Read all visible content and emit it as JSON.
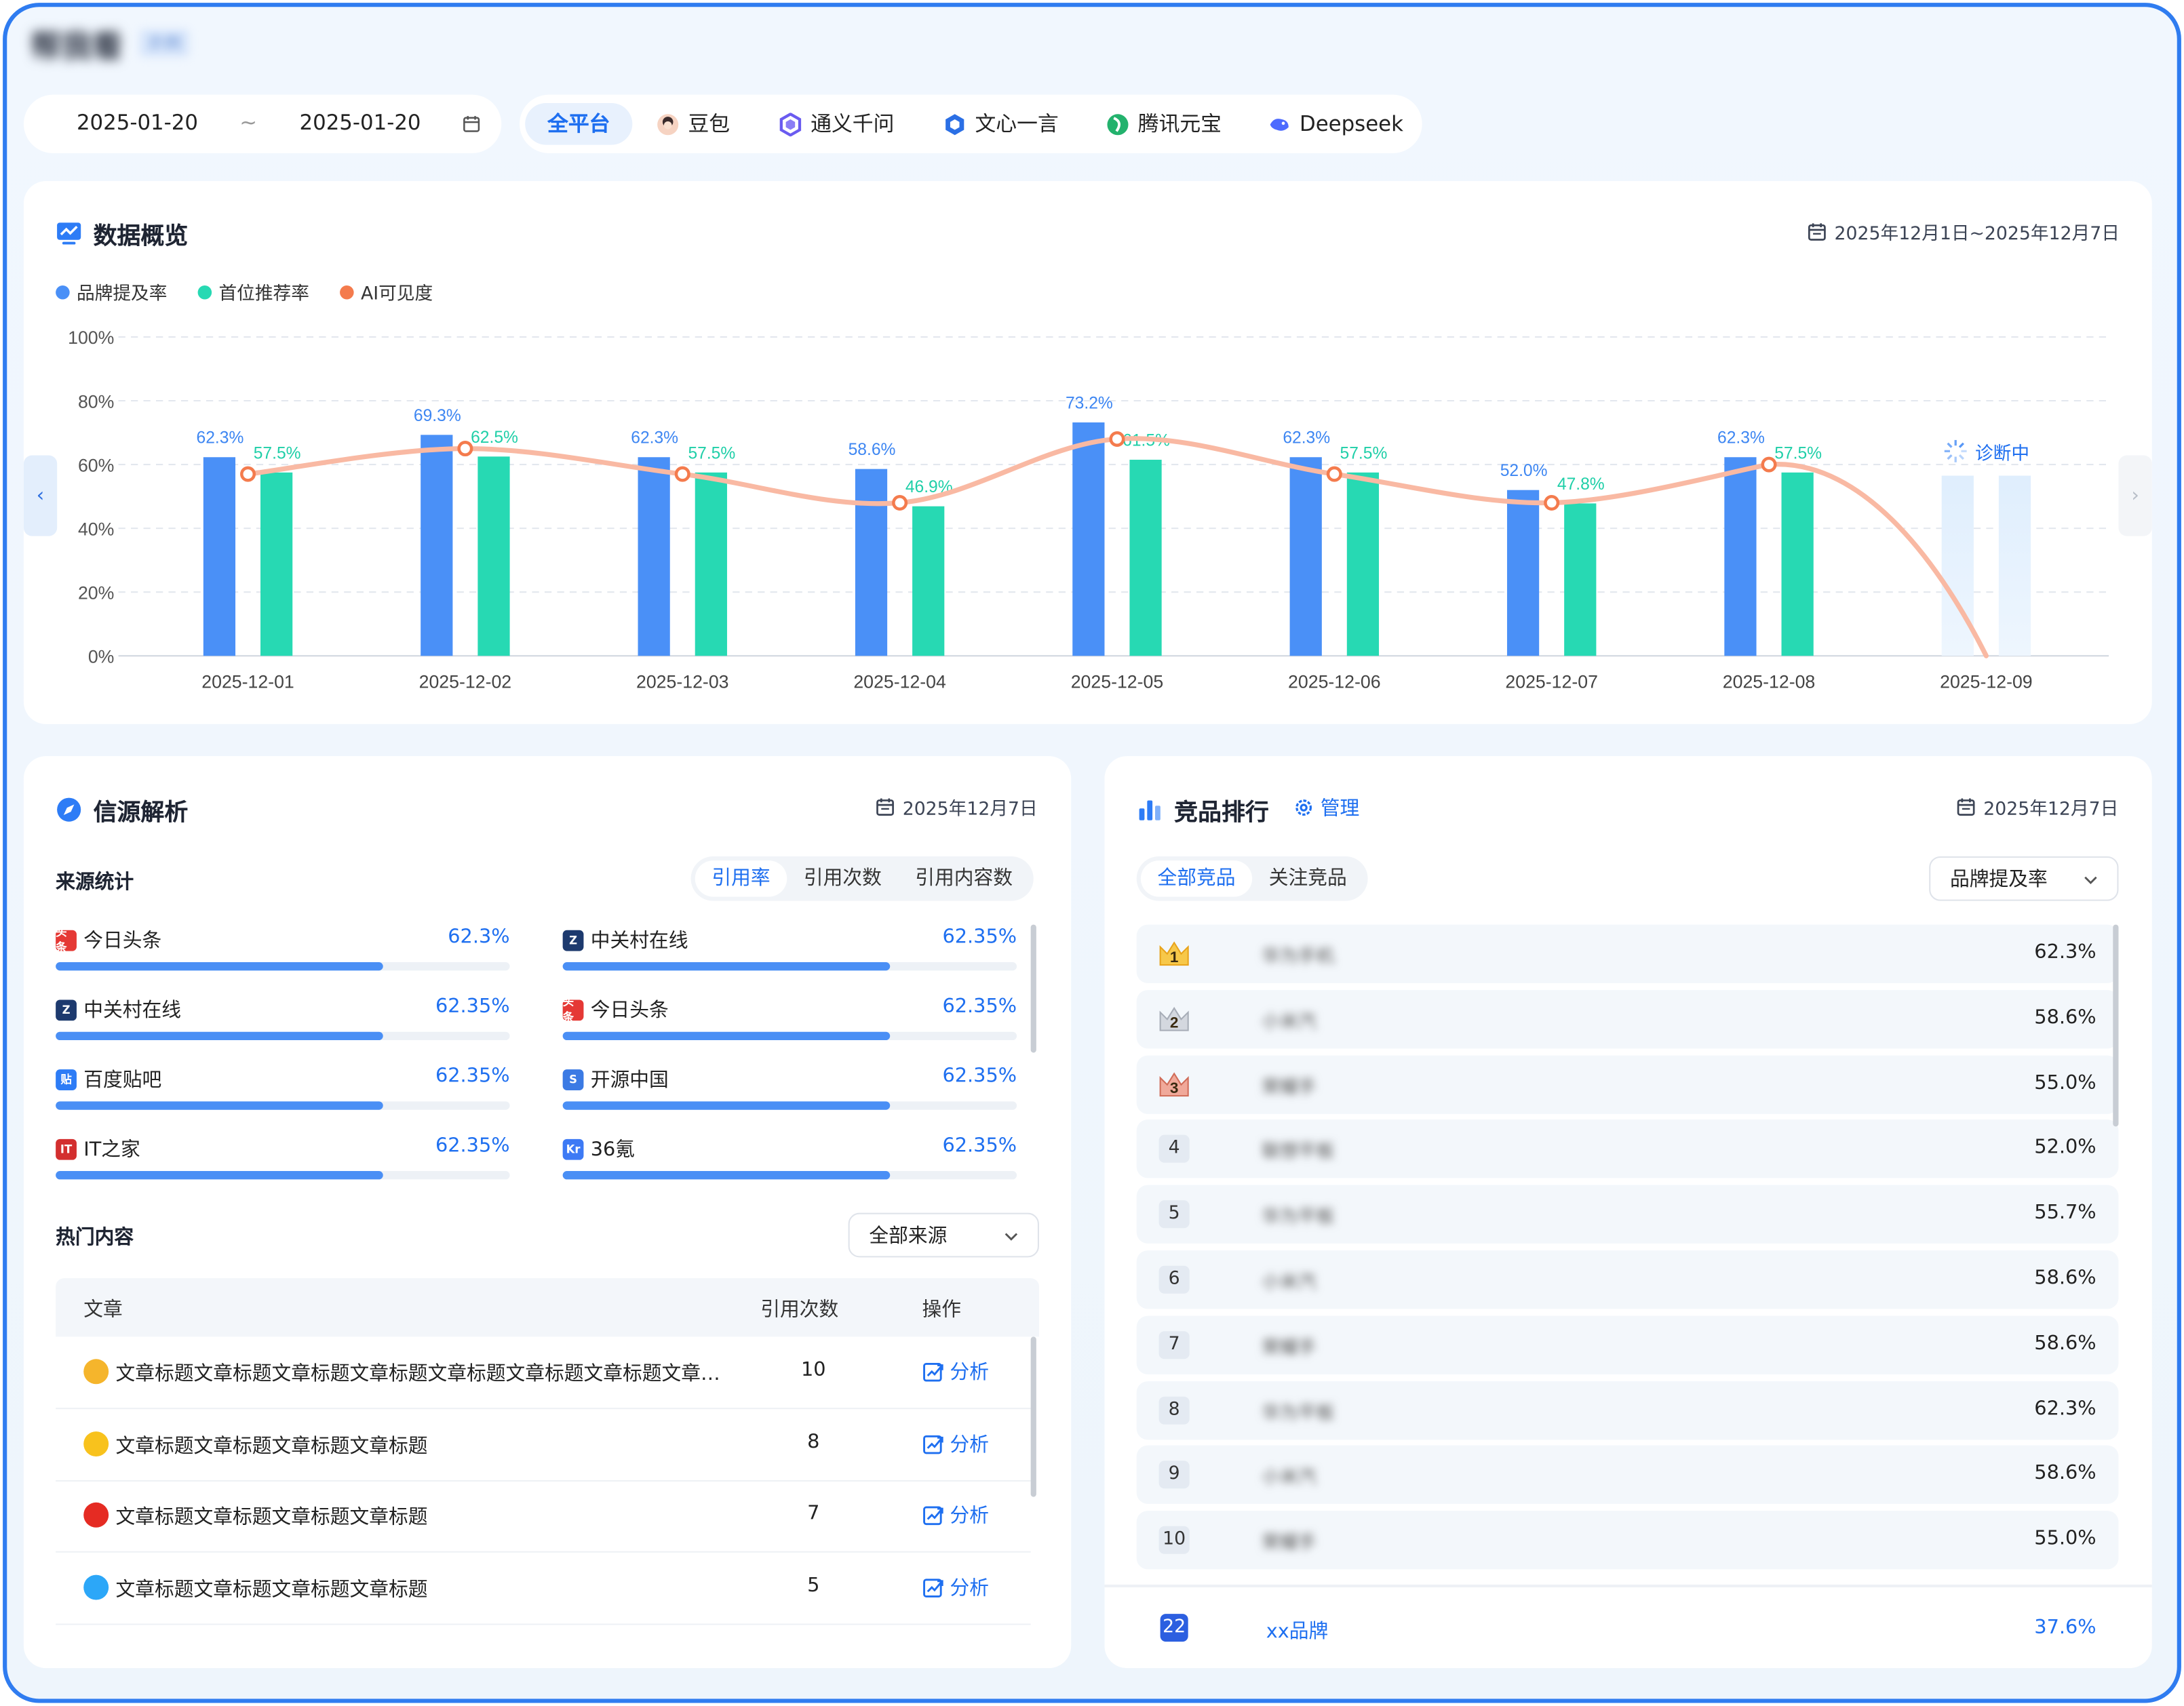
{
  "header": {
    "title": "帮我看",
    "badge": "示例"
  },
  "date_filter": {
    "start": "2025-01-20",
    "sep": "~",
    "end": "2025-01-20"
  },
  "platforms": [
    {
      "label": "全平台",
      "active": true,
      "icon": "all-icon"
    },
    {
      "label": "豆包",
      "icon": "doubao-icon",
      "color": "#e98a57"
    },
    {
      "label": "通义千问",
      "icon": "tongyi-icon",
      "color": "#6a5bf0"
    },
    {
      "label": "文心一言",
      "icon": "wenxin-icon",
      "color": "#2b6fe5"
    },
    {
      "label": "腾讯元宝",
      "icon": "yuanbao-icon",
      "color": "#23b26d"
    },
    {
      "label": "Deepseek",
      "icon": "deepseek-icon",
      "color": "#4d6bfe"
    }
  ],
  "overview": {
    "title": "数据概览",
    "date_range": "2025年12月1日~2025年12月7日",
    "diagnosing_label": "诊断中"
  },
  "chart_data": {
    "type": "bar",
    "categories": [
      "2025-12-01",
      "2025-12-02",
      "2025-12-03",
      "2025-12-04",
      "2025-12-05",
      "2025-12-06",
      "2025-12-07",
      "2025-12-08",
      "2025-12-09"
    ],
    "series": [
      {
        "name": "品牌提及率",
        "type": "bar",
        "color": "#4a90f7",
        "values": [
          62.3,
          69.3,
          62.3,
          58.6,
          73.2,
          62.3,
          52.0,
          62.3,
          null
        ],
        "labels": [
          "62.3%",
          "69.3%",
          "62.3%",
          "58.6%",
          "73.2%",
          "62.3%",
          "52.0%",
          "62.3%",
          ""
        ]
      },
      {
        "name": "首位推荐率",
        "type": "bar",
        "color": "#27d9b3",
        "values": [
          57.5,
          62.5,
          57.5,
          46.9,
          61.5,
          57.5,
          47.8,
          57.5,
          null
        ],
        "labels": [
          "57.5%",
          "62.5%",
          "57.5%",
          "46.9%",
          "61.5%",
          "57.5%",
          "47.8%",
          "57.5%",
          ""
        ]
      },
      {
        "name": "AI可见度",
        "type": "line",
        "color": "#f47b4d",
        "values": [
          57,
          65,
          57,
          48,
          68,
          57,
          48,
          60,
          null
        ]
      }
    ],
    "pending_category": "2025-12-09",
    "yticks": [
      "0%",
      "20%",
      "40%",
      "60%",
      "80%",
      "100%"
    ],
    "ylim": [
      0,
      100
    ],
    "legend": "top-left",
    "grid": true
  },
  "sources": {
    "title": "信源解析",
    "date": "2025年12月7日",
    "stats_label": "来源统计",
    "tabs": [
      {
        "label": "引用率",
        "active": true
      },
      {
        "label": "引用次数"
      },
      {
        "label": "引用内容数"
      }
    ],
    "left": [
      {
        "name": "今日头条",
        "pct": "62.3%",
        "fill": 0.72,
        "icon": "toutiao-icon",
        "color": "#e53935",
        "mark": "头条"
      },
      {
        "name": "中关村在线",
        "pct": "62.35%",
        "fill": 0.72,
        "icon": "zol-icon",
        "color": "#1d3a6e",
        "mark": "Z"
      },
      {
        "name": "百度贴吧",
        "pct": "62.35%",
        "fill": 0.72,
        "icon": "tieba-icon",
        "color": "#2d7cf6",
        "mark": "贴"
      },
      {
        "name": "IT之家",
        "pct": "62.35%",
        "fill": 0.72,
        "icon": "ithome-icon",
        "color": "#d32f2f",
        "mark": "IT"
      }
    ],
    "right": [
      {
        "name": "中关村在线",
        "pct": "62.35%",
        "fill": 0.72,
        "icon": "zol-icon",
        "color": "#1d3a6e",
        "mark": "Z"
      },
      {
        "name": "今日头条",
        "pct": "62.35%",
        "fill": 0.72,
        "icon": "toutiao-icon",
        "color": "#e53935",
        "mark": "头条"
      },
      {
        "name": "开源中国",
        "pct": "62.35%",
        "fill": 0.72,
        "icon": "oschina-icon",
        "color": "#3b7ae4",
        "mark": "S"
      },
      {
        "name": "36氪",
        "pct": "62.35%",
        "fill": 0.72,
        "icon": "36kr-icon",
        "color": "#3d7af5",
        "mark": "Kr"
      }
    ],
    "hot_label": "热门内容",
    "filter": "全部来源",
    "table": {
      "headers": [
        "文章",
        "引用次数",
        "操作"
      ],
      "rows": [
        {
          "title": "文章标题文章标题文章标题文章标题文章标题文章标题文章标题文章标题文章标",
          "count": "10",
          "action": "分析",
          "icon": "sina-icon",
          "color": "#f5b52c"
        },
        {
          "title": "文章标题文章标题文章标题文章标题",
          "count": "8",
          "action": "分析",
          "icon": "sohu-icon",
          "color": "#f8c21d"
        },
        {
          "title": "文章标题文章标题文章标题文章标题",
          "count": "7",
          "action": "分析",
          "icon": "weibo-icon",
          "color": "#e52b23"
        },
        {
          "title": "文章标题文章标题文章标题文章标题",
          "count": "5",
          "action": "分析",
          "icon": "qq-icon",
          "color": "#2ca7f8"
        }
      ]
    }
  },
  "ranking": {
    "title": "竞品排行",
    "manage": "管理",
    "date": "2025年12月7日",
    "tabs": [
      {
        "label": "全部竞品",
        "active": true
      },
      {
        "label": "关注竞品"
      }
    ],
    "metric": "品牌提及率",
    "rows": [
      {
        "rank": "1",
        "name": "华为手机",
        "pct": "62.3%",
        "crown": "gold"
      },
      {
        "rank": "2",
        "name": "小米汽",
        "pct": "58.6%",
        "crown": "silver"
      },
      {
        "rank": "3",
        "name": "荣耀手",
        "pct": "55.0%",
        "crown": "bronze"
      },
      {
        "rank": "4",
        "name": "联想平板",
        "pct": "52.0%"
      },
      {
        "rank": "5",
        "name": "华为平板",
        "pct": "55.7%"
      },
      {
        "rank": "6",
        "name": "小米汽",
        "pct": "58.6%"
      },
      {
        "rank": "7",
        "name": "荣耀手",
        "pct": "58.6%"
      },
      {
        "rank": "8",
        "name": "华为平板",
        "pct": "62.3%"
      },
      {
        "rank": "9",
        "name": "小米汽",
        "pct": "58.6%"
      },
      {
        "rank": "10",
        "name": "荣耀手",
        "pct": "55.0%"
      }
    ],
    "self": {
      "rank": "22",
      "name": "xx品牌",
      "pct": "37.6%"
    }
  }
}
